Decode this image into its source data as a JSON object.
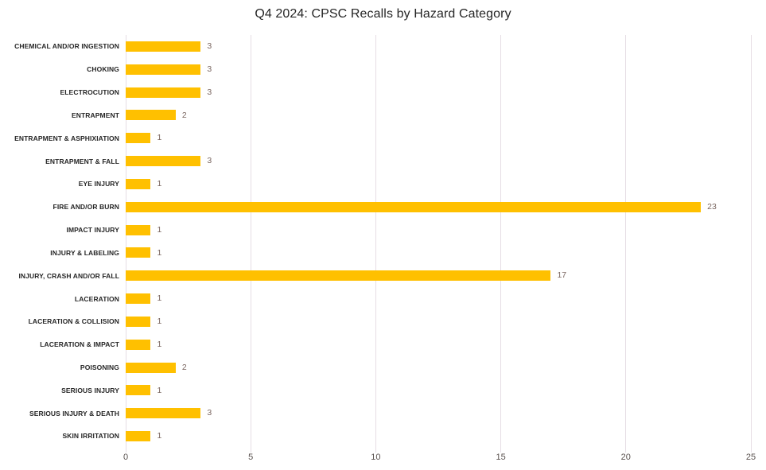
{
  "chart_data": {
    "type": "bar",
    "orientation": "horizontal",
    "title": "Q4 2024: CPSC Recalls by Hazard Category",
    "categories": [
      "CHEMICAL AND/OR INGESTION",
      "CHOKING",
      "ELECTROCUTION",
      "ENTRAPMENT",
      "ENTRAPMENT & ASPHIXIATION",
      "ENTRAPMENT & FALL",
      "EYE INJURY",
      "FIRE AND/OR BURN",
      "IMPACT INJURY",
      "INJURY & LABELING",
      "INJURY, CRASH AND/OR FALL",
      "LACERATION",
      "LACERATION & COLLISION",
      "LACERATION & IMPACT",
      "POISONING",
      "SERIOUS INJURY",
      "SERIOUS INJURY & DEATH",
      "SKIN IRRITATION"
    ],
    "values": [
      3,
      3,
      3,
      2,
      1,
      3,
      1,
      23,
      1,
      1,
      17,
      1,
      1,
      1,
      2,
      1,
      3,
      1
    ],
    "xlabel": "",
    "ylabel": "",
    "xlim": [
      0,
      25
    ],
    "xticks": [
      0,
      5,
      10,
      15,
      20,
      25
    ],
    "grid": "vertical",
    "legend": "none",
    "data_labels": true,
    "colors": {
      "bar": "#FFC000",
      "gridline": "#e6dde4",
      "title_text": "#262626",
      "category_text": "#262626",
      "value_text": "#7a6660",
      "tick_text": "#5a524f",
      "background": "#ffffff"
    }
  }
}
